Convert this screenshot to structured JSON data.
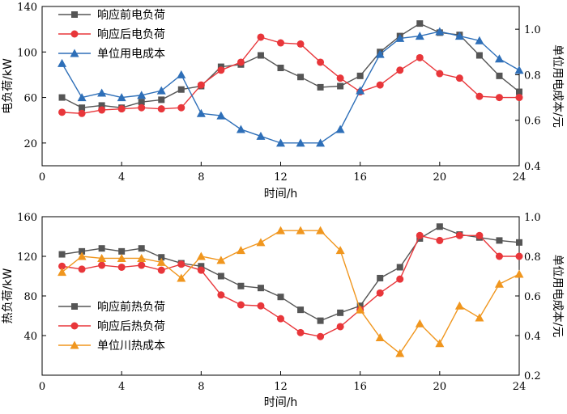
{
  "chart_data": [
    {
      "type": "line",
      "xlabel": "时间/h",
      "ylabel": "电负荷/kW",
      "y2label": "单位用电成本/元",
      "xlim": [
        0,
        24
      ],
      "ylim": [
        0,
        140
      ],
      "y2lim": [
        0.4,
        1.1
      ],
      "xticks": [
        "0",
        "4",
        "8",
        "12",
        "16",
        "20",
        "24"
      ],
      "yticks": [
        "20",
        "60",
        "100",
        "140"
      ],
      "y2ticks": [
        "0.4",
        "0.6",
        "0.8",
        "1.0"
      ],
      "legend_position": "top-left",
      "x": [
        1,
        2,
        3,
        4,
        5,
        6,
        7,
        8,
        9,
        10,
        11,
        12,
        13,
        14,
        15,
        16,
        17,
        18,
        19,
        20,
        21,
        22,
        23,
        24
      ],
      "series": [
        {
          "name": "响应前电负荷",
          "axis": "left",
          "color": "#555555",
          "marker": "square",
          "values": [
            60,
            51,
            53,
            51,
            56,
            58,
            67,
            70,
            87,
            89,
            97,
            86,
            78,
            69,
            70,
            79,
            100,
            114,
            125,
            117,
            115,
            97,
            79,
            65
          ]
        },
        {
          "name": "响应后电负荷",
          "axis": "left",
          "color": "#e8363a",
          "marker": "circle",
          "values": [
            47,
            46,
            49,
            50,
            51,
            50,
            51,
            71,
            84,
            91,
            113,
            108,
            107,
            91,
            77,
            65,
            71,
            84,
            95,
            81,
            77,
            61,
            60,
            60
          ]
        },
        {
          "name": "单位用电成本",
          "axis": "right",
          "color": "#2e6fb8",
          "marker": "triangle",
          "values": [
            0.85,
            0.7,
            0.72,
            0.7,
            0.71,
            0.73,
            0.8,
            0.63,
            0.62,
            0.56,
            0.53,
            0.5,
            0.5,
            0.5,
            0.56,
            0.73,
            0.89,
            0.96,
            0.97,
            0.99,
            0.97,
            0.95,
            0.87,
            0.82
          ]
        }
      ]
    },
    {
      "type": "line",
      "xlabel": "时间/h",
      "ylabel": "热负荷/kW",
      "y2label": "单位用电成本/元",
      "xlim": [
        0,
        24
      ],
      "ylim": [
        0,
        160
      ],
      "y2lim": [
        0.2,
        1.0
      ],
      "xticks": [
        "0",
        "4",
        "8",
        "12",
        "16",
        "20",
        "24"
      ],
      "yticks": [
        "40",
        "80",
        "120",
        "160"
      ],
      "y2ticks": [
        "0.2",
        "0.4",
        "0.6",
        "0.8",
        "1.0"
      ],
      "legend_position": "bottom-left",
      "x": [
        1,
        2,
        3,
        4,
        5,
        6,
        7,
        8,
        9,
        10,
        11,
        12,
        13,
        14,
        15,
        16,
        17,
        18,
        19,
        20,
        21,
        22,
        23,
        24
      ],
      "series": [
        {
          "name": "响应前热负荷",
          "axis": "left",
          "color": "#555555",
          "marker": "square",
          "values": [
            122,
            125,
            128,
            125,
            128,
            119,
            113,
            110,
            100,
            90,
            88,
            79,
            66,
            55,
            63,
            70,
            98,
            109,
            138,
            150,
            142,
            139,
            136,
            134
          ]
        },
        {
          "name": "响应后热负荷",
          "axis": "left",
          "color": "#e8363a",
          "marker": "circle",
          "values": [
            110,
            107,
            111,
            109,
            111,
            106,
            112,
            106,
            81,
            71,
            70,
            57,
            43,
            39,
            49,
            66,
            83,
            97,
            141,
            136,
            141,
            141,
            120,
            120
          ]
        },
        {
          "name": "单位川热成本",
          "axis": "right",
          "color": "#f0961e",
          "marker": "triangle",
          "values": [
            0.72,
            0.8,
            0.79,
            0.79,
            0.79,
            0.77,
            0.69,
            0.8,
            0.78,
            0.83,
            0.87,
            0.93,
            0.93,
            0.93,
            0.83,
            0.53,
            0.39,
            0.31,
            0.46,
            0.36,
            0.55,
            0.49,
            0.66,
            0.71
          ]
        }
      ]
    }
  ]
}
